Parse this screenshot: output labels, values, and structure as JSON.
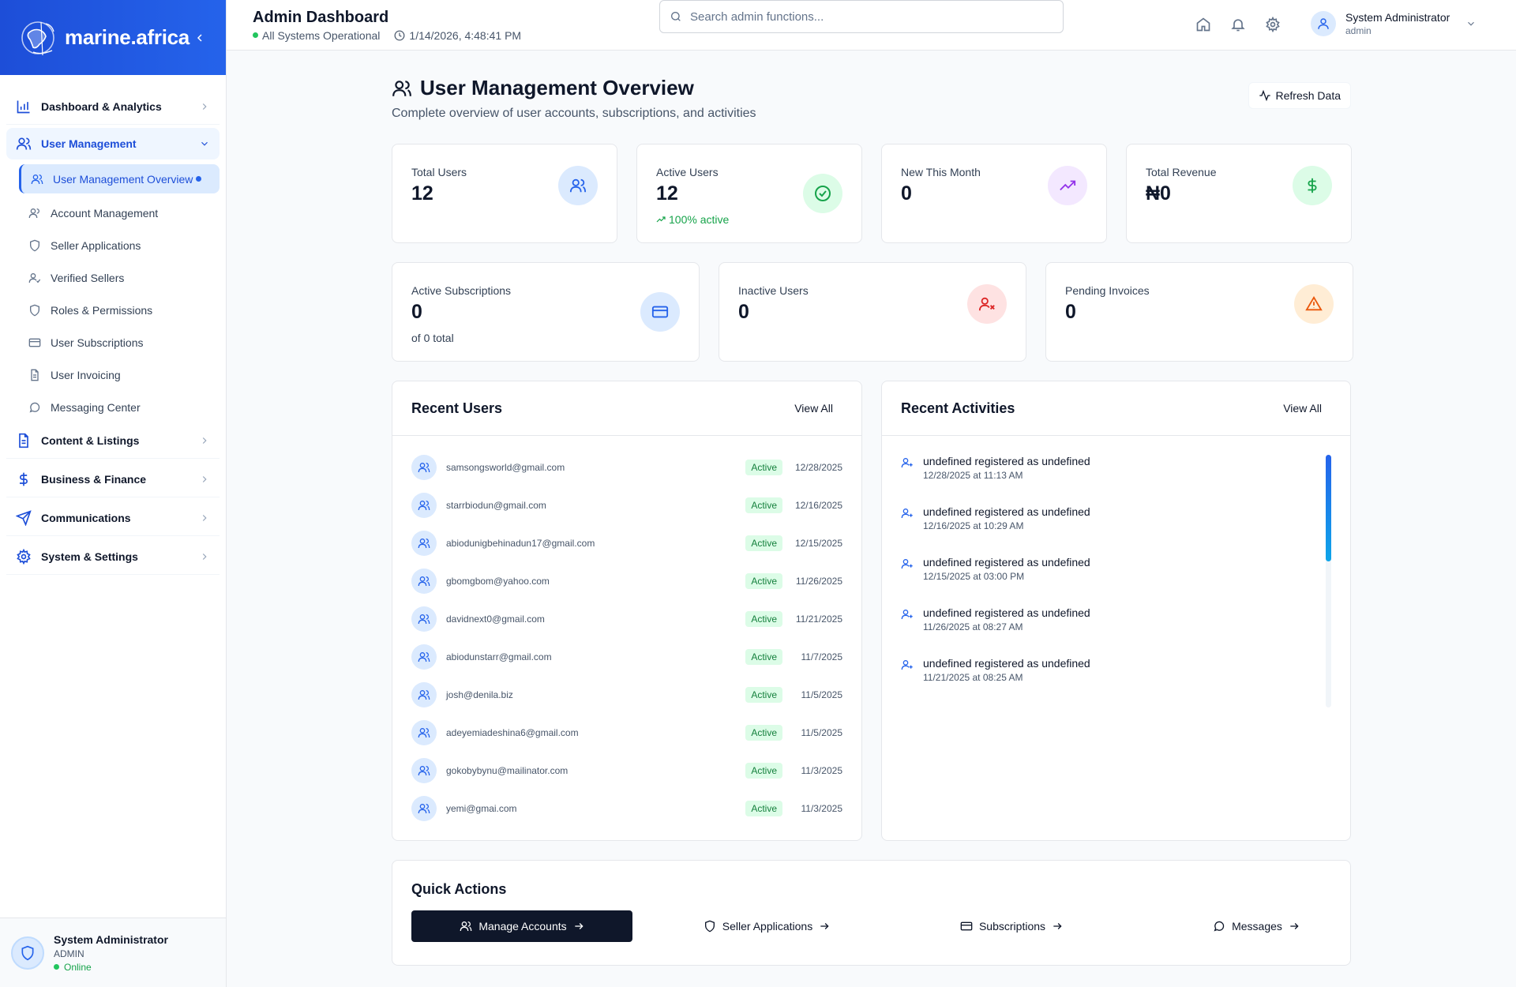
{
  "brand": {
    "name": "marine.africa"
  },
  "sidebar": {
    "groups": [
      {
        "label": "Dashboard & Analytics"
      },
      {
        "label": "User Management"
      },
      {
        "label": "Content & Listings"
      },
      {
        "label": "Business & Finance"
      },
      {
        "label": "Communications"
      },
      {
        "label": "System & Settings"
      }
    ],
    "sub_items": [
      {
        "label": "User Management Overview"
      },
      {
        "label": "Account Management"
      },
      {
        "label": "Seller Applications"
      },
      {
        "label": "Verified Sellers"
      },
      {
        "label": "Roles & Permissions"
      },
      {
        "label": "User Subscriptions"
      },
      {
        "label": "User Invoicing"
      },
      {
        "label": "Messaging Center"
      }
    ],
    "footer": {
      "name": "System Administrator",
      "role": "ADMIN",
      "status": "Online"
    }
  },
  "header": {
    "title": "Admin Dashboard",
    "status": "All Systems Operational",
    "datetime": "1/14/2026, 4:48:41 PM",
    "search_placeholder": "Search admin functions...",
    "user_name": "System Administrator",
    "user_role": "admin"
  },
  "page": {
    "title": "User Management Overview",
    "description": "Complete overview of user accounts, subscriptions, and activities",
    "refresh_label": "Refresh Data"
  },
  "stats_top": [
    {
      "label": "Total Users",
      "value": "12",
      "note": ""
    },
    {
      "label": "Active Users",
      "value": "12",
      "note": "100% active"
    },
    {
      "label": "New This Month",
      "value": "0",
      "note": ""
    },
    {
      "label": "Total Revenue",
      "value": "₦0",
      "note": ""
    }
  ],
  "stats_bottom": [
    {
      "label": "Active Subscriptions",
      "value": "0",
      "note": "of 0 total"
    },
    {
      "label": "Inactive Users",
      "value": "0",
      "note": ""
    },
    {
      "label": "Pending Invoices",
      "value": "0",
      "note": ""
    }
  ],
  "recent_users": {
    "title": "Recent Users",
    "view_all": "View All",
    "rows": [
      {
        "email": "samsongsworld@gmail.com",
        "status": "Active",
        "date": "12/28/2025"
      },
      {
        "email": "starrbiodun@gmail.com",
        "status": "Active",
        "date": "12/16/2025"
      },
      {
        "email": "abiodunigbehinadun17@gmail.com",
        "status": "Active",
        "date": "12/15/2025"
      },
      {
        "email": "gbomgbom@yahoo.com",
        "status": "Active",
        "date": "11/26/2025"
      },
      {
        "email": "davidnext0@gmail.com",
        "status": "Active",
        "date": "11/21/2025"
      },
      {
        "email": "abiodunstarr@gmail.com",
        "status": "Active",
        "date": "11/7/2025"
      },
      {
        "email": "josh@denila.biz",
        "status": "Active",
        "date": "11/5/2025"
      },
      {
        "email": "adeyemiadeshina6@gmail.com",
        "status": "Active",
        "date": "11/5/2025"
      },
      {
        "email": "gokobybynu@mailinator.com",
        "status": "Active",
        "date": "11/3/2025"
      },
      {
        "email": "yemi@gmai.com",
        "status": "Active",
        "date": "11/3/2025"
      }
    ]
  },
  "recent_activities": {
    "title": "Recent Activities",
    "view_all": "View All",
    "rows": [
      {
        "text": "undefined registered as undefined",
        "time": "12/28/2025 at 11:13 AM"
      },
      {
        "text": "undefined registered as undefined",
        "time": "12/16/2025 at 10:29 AM"
      },
      {
        "text": "undefined registered as undefined",
        "time": "12/15/2025 at 03:00 PM"
      },
      {
        "text": "undefined registered as undefined",
        "time": "11/26/2025 at 08:27 AM"
      },
      {
        "text": "undefined registered as undefined",
        "time": "11/21/2025 at 08:25 AM"
      }
    ]
  },
  "quick_actions": {
    "title": "Quick Actions",
    "buttons": [
      {
        "label": "Manage Accounts"
      },
      {
        "label": "Seller Applications"
      },
      {
        "label": "Subscriptions"
      },
      {
        "label": "Messages"
      }
    ]
  },
  "colors": {
    "accent": "#2563eb",
    "brand_bg": "#1d4ed8",
    "success": "#16a34a",
    "dark": "#0f172a"
  }
}
